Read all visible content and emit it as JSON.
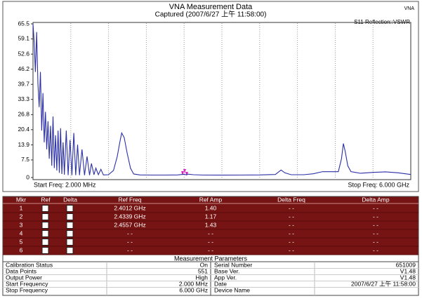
{
  "header": {
    "app": "VNA",
    "title": "VNA Measurement Data",
    "subtitle": "Captured  (2007/6/27 上午 11:58:00)",
    "trace_label": "S11 Reflection::VSWR"
  },
  "chart_data": {
    "type": "line",
    "x_start_label": "Start Freq: 2.000 MHz",
    "x_end_label": "Stop Freq: 6.000 GHz",
    "x": [
      0.002,
      0.02,
      0.04,
      0.06,
      0.08,
      0.1,
      0.12,
      0.14,
      0.16,
      0.18,
      0.2,
      0.22,
      0.24,
      0.26,
      0.28,
      0.3,
      0.32,
      0.34,
      0.36,
      0.38,
      0.4,
      0.42,
      0.44,
      0.46,
      0.48,
      0.5,
      0.53,
      0.56,
      0.59,
      0.62,
      0.65,
      0.68,
      0.71,
      0.74,
      0.78,
      0.82,
      0.86,
      0.9,
      0.93,
      0.97,
      1.0,
      1.04,
      1.08,
      1.12,
      1.2,
      1.28,
      1.34,
      1.38,
      1.41,
      1.45,
      1.5,
      1.55,
      1.6,
      1.7,
      1.9,
      2.1,
      2.3,
      2.4,
      2.43,
      2.46,
      2.55,
      2.7,
      3.0,
      3.3,
      3.6,
      3.85,
      3.94,
      4.0,
      4.1,
      4.3,
      4.45,
      4.6,
      4.85,
      4.9,
      4.93,
      4.96,
      5.0,
      5.05,
      5.2,
      5.4,
      5.6,
      5.8,
      6.0
    ],
    "series": [
      {
        "color": "#2b2fa6",
        "values": [
          65.5,
          58,
          45,
          62,
          40,
          30,
          45,
          20,
          36,
          15,
          28,
          12,
          24,
          8,
          22,
          5,
          26,
          4,
          18,
          3,
          20,
          2,
          21,
          1.5,
          15,
          1.2,
          20,
          1,
          16,
          1,
          19,
          1,
          14,
          1,
          12,
          1,
          9,
          1,
          6,
          1.2,
          4,
          1.2,
          3.5,
          1.1,
          1.2,
          3,
          9,
          15,
          19,
          17,
          10,
          4,
          1.5,
          1.1,
          1.05,
          1.05,
          1.1,
          1.4,
          1.17,
          1.43,
          1.2,
          1.05,
          1.02,
          1.05,
          1.1,
          1.3,
          3.2,
          2,
          1.2,
          1.2,
          1.6,
          2.5,
          2.5,
          8,
          14.5,
          11,
          5,
          2.5,
          1.8,
          2.2,
          2.4,
          2,
          1.3
        ]
      }
    ],
    "xlim": [
      0.002,
      6
    ],
    "ylim": [
      0,
      65.5
    ],
    "yticks": [
      0,
      7.5,
      13.9,
      20.4,
      26.8,
      33.3,
      39.7,
      46.2,
      52.6,
      59.1,
      65.5
    ]
  },
  "markers_table": {
    "columns": [
      "Mkr",
      "Ref",
      "Delta",
      "Ref Freq",
      "Ref Amp",
      "Delta Freq",
      "Delta Amp"
    ],
    "rows": [
      [
        "1",
        "2.4012 GHz",
        "1.40",
        "- -",
        "- -"
      ],
      [
        "2",
        "2.4339 GHz",
        "1.17",
        "- -",
        "- -"
      ],
      [
        "3",
        "2.4557 GHz",
        "1.43",
        "- -",
        "- -"
      ],
      [
        "4",
        "- -",
        "- -",
        "- -",
        "- -"
      ],
      [
        "5",
        "- -",
        "- -",
        "- -",
        "- -"
      ],
      [
        "6",
        "- -",
        "- -",
        "- -",
        "- -"
      ]
    ]
  },
  "parameters": {
    "title": "Measurement Parameters",
    "left": [
      [
        "Calibration Status",
        "On"
      ],
      [
        "Data Points",
        "551"
      ],
      [
        "Output Power",
        "High"
      ],
      [
        "Start Frequency",
        "2.000 MHz"
      ],
      [
        "Stop Frequency",
        "6.000 GHz"
      ]
    ],
    "right": [
      [
        "Serial Number",
        "651009"
      ],
      [
        "Base Ver.",
        "V1.48"
      ],
      [
        "App Ver.",
        "V1.48"
      ],
      [
        "Date",
        "2007/6/27 上午 11:58:00"
      ],
      [
        "Device Name"
      ]
    ]
  }
}
